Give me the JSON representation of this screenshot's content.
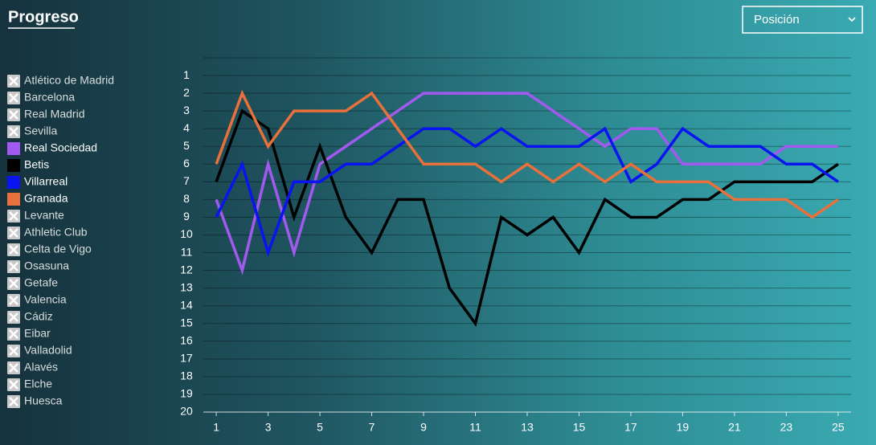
{
  "controls": {
    "metric": "Posición"
  },
  "chart_data": {
    "type": "line",
    "title": "Progreso",
    "x": [
      1,
      2,
      3,
      4,
      5,
      6,
      7,
      8,
      9,
      10,
      11,
      12,
      13,
      14,
      15,
      16,
      17,
      18,
      19,
      20,
      21,
      22,
      23,
      24,
      25
    ],
    "xlim": [
      0.5,
      25.5
    ],
    "xticks": [
      1,
      3,
      5,
      7,
      9,
      11,
      13,
      15,
      17,
      19,
      21,
      23,
      25
    ],
    "ylim": [
      0,
      20
    ],
    "y_inverted": true,
    "yticks": [
      1,
      2,
      3,
      4,
      5,
      6,
      7,
      8,
      9,
      10,
      11,
      12,
      13,
      14,
      15,
      16,
      17,
      18,
      19,
      20
    ],
    "grid": true,
    "series": [
      {
        "name": "Atlético de Madrid",
        "visible": false
      },
      {
        "name": "Barcelona",
        "visible": false
      },
      {
        "name": "Real Madrid",
        "visible": false
      },
      {
        "name": "Sevilla",
        "visible": false
      },
      {
        "name": "Real Sociedad",
        "visible": true,
        "color": "#a259f0",
        "values": [
          8,
          12,
          6,
          11,
          6,
          5,
          4,
          3,
          2,
          2,
          2,
          2,
          2,
          3,
          4,
          5,
          4,
          4,
          6,
          6,
          6,
          6,
          5,
          5,
          5
        ]
      },
      {
        "name": "Betis",
        "visible": true,
        "color": "#000000",
        "values": [
          7,
          3,
          4,
          9,
          5,
          9,
          11,
          8,
          8,
          13,
          15,
          9,
          10,
          9,
          11,
          8,
          9,
          9,
          8,
          8,
          7,
          7,
          7,
          7,
          6
        ]
      },
      {
        "name": "Villarreal",
        "visible": true,
        "color": "#0a14f0",
        "values": [
          9,
          6,
          11,
          7,
          7,
          6,
          6,
          5,
          4,
          4,
          5,
          4,
          5,
          5,
          5,
          4,
          7,
          6,
          4,
          5,
          5,
          5,
          6,
          6,
          7
        ]
      },
      {
        "name": "Granada",
        "visible": true,
        "color": "#e8703a",
        "values": [
          6,
          2,
          5,
          3,
          3,
          3,
          2,
          4,
          6,
          6,
          6,
          7,
          6,
          7,
          6,
          7,
          6,
          7,
          7,
          7,
          8,
          8,
          8,
          9,
          8
        ]
      },
      {
        "name": "Levante",
        "visible": false
      },
      {
        "name": "Athletic Club",
        "visible": false
      },
      {
        "name": "Celta de Vigo",
        "visible": false
      },
      {
        "name": "Osasuna",
        "visible": false
      },
      {
        "name": "Getafe",
        "visible": false
      },
      {
        "name": "Valencia",
        "visible": false
      },
      {
        "name": "Cádiz",
        "visible": false
      },
      {
        "name": "Eibar",
        "visible": false
      },
      {
        "name": "Valladolid",
        "visible": false
      },
      {
        "name": "Alavés",
        "visible": false
      },
      {
        "name": "Elche",
        "visible": false
      },
      {
        "name": "Huesca",
        "visible": false
      }
    ]
  }
}
